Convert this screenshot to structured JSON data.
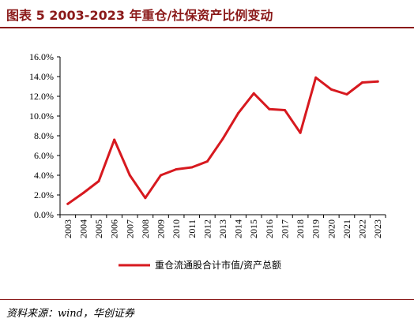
{
  "header": {
    "title": "图表 5    2003-2023 年重仓/社保资产比例变动"
  },
  "footer": {
    "source": "资料来源：wind，华创证券"
  },
  "colors": {
    "accent": "#8b1a1a",
    "series": "#d7191f"
  },
  "chart_data": {
    "type": "line",
    "x": [
      "2003",
      "2004",
      "2005",
      "2006",
      "2007",
      "2008",
      "2009",
      "2010",
      "2011",
      "2012",
      "2013",
      "2014",
      "2015",
      "2016",
      "2017",
      "2018",
      "2019",
      "2020",
      "2021",
      "2022",
      "2023"
    ],
    "series": [
      {
        "name": "重仓流通股合计市值/资产总额",
        "values": [
          1.1,
          2.2,
          3.4,
          7.6,
          4.0,
          1.7,
          4.0,
          4.6,
          4.8,
          5.4,
          7.7,
          10.3,
          12.3,
          10.7,
          10.6,
          8.3,
          13.9,
          12.7,
          12.2,
          13.4,
          13.5
        ]
      }
    ],
    "ylim": [
      0,
      16
    ],
    "yticks": [
      0,
      2,
      4,
      6,
      8,
      10,
      12,
      14,
      16
    ],
    "ytick_labels": [
      "0.0%",
      "2.0%",
      "4.0%",
      "6.0%",
      "8.0%",
      "10.0%",
      "12.0%",
      "14.0%",
      "16.0%"
    ],
    "legend_position": "bottom",
    "grid": false
  }
}
